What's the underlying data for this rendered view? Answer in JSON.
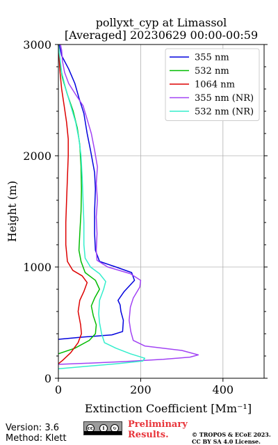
{
  "header": {
    "title_line1": "pollyxt_cyp at Limassol",
    "title_line2": "[Averaged] 20230629 00:00-00:59"
  },
  "footer": {
    "version": "Version: 3.6",
    "method": "Method: Klett",
    "preliminary_line1": "Preliminary",
    "preliminary_line2": "Results.",
    "copyright_line1": "© TROPOS & ECoE 2023.",
    "copyright_line2": "CC BY SA 4.0 License.",
    "license_logo_label": "cc by sa"
  },
  "chart_data": {
    "type": "line",
    "xlabel": "Extinction Coefficient [Mm⁻¹]",
    "ylabel": "Height (m)",
    "xlim": [
      0,
      500
    ],
    "ylim": [
      0,
      3000
    ],
    "xticks": [
      0,
      200,
      400
    ],
    "yticks": [
      0,
      1000,
      2000,
      3000
    ],
    "grid": true,
    "legend_position": "top-right",
    "series": [
      {
        "name": "355 nm",
        "color": "#0000dd",
        "points": [
          [
            0,
            350
          ],
          [
            60,
            370
          ],
          [
            130,
            390
          ],
          [
            156,
            420
          ],
          [
            158,
            520
          ],
          [
            152,
            600
          ],
          [
            150,
            660
          ],
          [
            145,
            700
          ],
          [
            160,
            780
          ],
          [
            185,
            880
          ],
          [
            178,
            950
          ],
          [
            140,
            1000
          ],
          [
            100,
            1050
          ],
          [
            90,
            1150
          ],
          [
            88,
            1300
          ],
          [
            88,
            1500
          ],
          [
            90,
            1700
          ],
          [
            88,
            1850
          ],
          [
            78,
            2050
          ],
          [
            70,
            2200
          ],
          [
            62,
            2380
          ],
          [
            50,
            2520
          ],
          [
            40,
            2650
          ],
          [
            25,
            2780
          ],
          [
            8,
            2900
          ],
          [
            2,
            3000
          ]
        ]
      },
      {
        "name": "532 nm",
        "color": "#00bb00",
        "points": [
          [
            0,
            220
          ],
          [
            40,
            270
          ],
          [
            75,
            340
          ],
          [
            90,
            400
          ],
          [
            92,
            480
          ],
          [
            85,
            560
          ],
          [
            80,
            650
          ],
          [
            88,
            720
          ],
          [
            100,
            800
          ],
          [
            90,
            880
          ],
          [
            65,
            950
          ],
          [
            55,
            1050
          ],
          [
            50,
            1150
          ],
          [
            52,
            1300
          ],
          [
            55,
            1500
          ],
          [
            56,
            1700
          ],
          [
            55,
            1900
          ],
          [
            52,
            2100
          ],
          [
            46,
            2250
          ],
          [
            36,
            2400
          ],
          [
            22,
            2550
          ],
          [
            10,
            2700
          ],
          [
            3,
            2850
          ],
          [
            0,
            3000
          ]
        ]
      },
      {
        "name": "1064 nm",
        "color": "#dd0000",
        "points": [
          [
            0,
            130
          ],
          [
            10,
            160
          ],
          [
            30,
            230
          ],
          [
            48,
            320
          ],
          [
            56,
            400
          ],
          [
            54,
            480
          ],
          [
            48,
            600
          ],
          [
            52,
            700
          ],
          [
            62,
            780
          ],
          [
            70,
            860
          ],
          [
            58,
            920
          ],
          [
            35,
            970
          ],
          [
            22,
            1050
          ],
          [
            18,
            1200
          ],
          [
            18,
            1400
          ],
          [
            20,
            1600
          ],
          [
            22,
            1800
          ],
          [
            24,
            2000
          ],
          [
            24,
            2150
          ],
          [
            20,
            2300
          ],
          [
            14,
            2450
          ],
          [
            8,
            2600
          ],
          [
            4,
            2750
          ],
          [
            0,
            3000
          ]
        ]
      },
      {
        "name": "355 nm (NR)",
        "color": "#a142f4",
        "points": [
          [
            0,
            125
          ],
          [
            70,
            135
          ],
          [
            160,
            150
          ],
          [
            255,
            170
          ],
          [
            320,
            190
          ],
          [
            340,
            210
          ],
          [
            300,
            250
          ],
          [
            210,
            290
          ],
          [
            182,
            340
          ],
          [
            176,
            420
          ],
          [
            172,
            520
          ],
          [
            175,
            640
          ],
          [
            182,
            720
          ],
          [
            198,
            820
          ],
          [
            200,
            880
          ],
          [
            175,
            940
          ],
          [
            120,
            1000
          ],
          [
            94,
            1060
          ],
          [
            92,
            1150
          ],
          [
            94,
            1300
          ],
          [
            92,
            1450
          ],
          [
            95,
            1600
          ],
          [
            92,
            1750
          ],
          [
            95,
            1900
          ],
          [
            88,
            2050
          ],
          [
            80,
            2200
          ],
          [
            68,
            2350
          ],
          [
            60,
            2450
          ],
          [
            42,
            2550
          ],
          [
            25,
            2650
          ],
          [
            15,
            2750
          ],
          [
            10,
            2850
          ],
          [
            8,
            2950
          ],
          [
            5,
            3000
          ]
        ]
      },
      {
        "name": "532 nm (NR)",
        "color": "#33eecc",
        "points": [
          [
            0,
            85
          ],
          [
            60,
            105
          ],
          [
            140,
            130
          ],
          [
            205,
            155
          ],
          [
            210,
            180
          ],
          [
            175,
            220
          ],
          [
            140,
            270
          ],
          [
            112,
            320
          ],
          [
            105,
            400
          ],
          [
            100,
            500
          ],
          [
            98,
            580
          ],
          [
            100,
            700
          ],
          [
            110,
            800
          ],
          [
            115,
            870
          ],
          [
            100,
            940
          ],
          [
            78,
            1000
          ],
          [
            65,
            1080
          ],
          [
            62,
            1200
          ],
          [
            62,
            1400
          ],
          [
            60,
            1600
          ],
          [
            58,
            1800
          ],
          [
            55,
            2000
          ],
          [
            50,
            2150
          ],
          [
            42,
            2300
          ],
          [
            30,
            2450
          ],
          [
            18,
            2600
          ],
          [
            8,
            2750
          ],
          [
            3,
            2900
          ],
          [
            0,
            3000
          ]
        ]
      }
    ]
  }
}
